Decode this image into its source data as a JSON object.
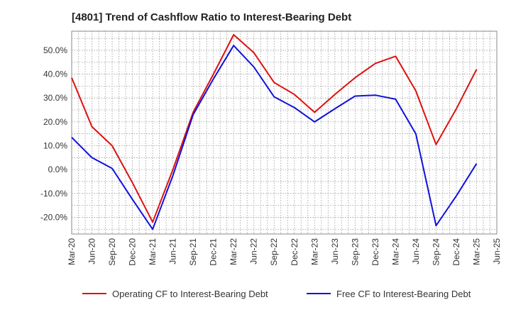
{
  "chart_data": {
    "type": "line",
    "title": "[4801]  Trend of Cashflow Ratio to Interest-Bearing Debt",
    "xlabel": "",
    "ylabel": "",
    "x": [
      "Mar-20",
      "Jun-20",
      "Sep-20",
      "Dec-20",
      "Mar-21",
      "Jun-21",
      "Sep-21",
      "Dec-21",
      "Mar-22",
      "Jun-22",
      "Sep-22",
      "Dec-22",
      "Mar-23",
      "Jun-23",
      "Sep-23",
      "Dec-23",
      "Mar-24",
      "Jun-24",
      "Sep-24",
      "Dec-24",
      "Mar-25",
      "Jun-25"
    ],
    "ylim": [
      -27,
      58
    ],
    "y_ticks": [
      {
        "value": 50,
        "label": "50.0%"
      },
      {
        "value": 40,
        "label": "40.0%"
      },
      {
        "value": 30,
        "label": "30.0%"
      },
      {
        "value": 20,
        "label": "20.0%"
      },
      {
        "value": 10,
        "label": "10.0%"
      },
      {
        "value": 0,
        "label": "0.0%"
      },
      {
        "value": -10,
        "label": "-10.0%"
      },
      {
        "value": -20,
        "label": "-20.0%"
      }
    ],
    "grid": true,
    "legend_position": "bottom",
    "series": [
      {
        "name": "Operating CF to Interest-Bearing Debt",
        "color": "#dd1111",
        "values": [
          38.5,
          18.0,
          10.0,
          -5.5,
          -22.0,
          0.0,
          24.0,
          40.0,
          56.5,
          49.0,
          36.5,
          31.5,
          24.0,
          31.5,
          38.5,
          44.5,
          47.5,
          33.0,
          10.5,
          25.5,
          42.0,
          null
        ]
      },
      {
        "name": "Free CF to Interest-Bearing Debt",
        "color": "#1111dd",
        "values": [
          13.5,
          5.0,
          0.5,
          -12.5,
          -25.0,
          -2.5,
          23.0,
          38.0,
          52.0,
          43.0,
          30.5,
          26.0,
          20.0,
          25.5,
          30.8,
          31.2,
          29.5,
          15.0,
          -23.5,
          -11.0,
          2.5,
          null
        ]
      }
    ]
  }
}
